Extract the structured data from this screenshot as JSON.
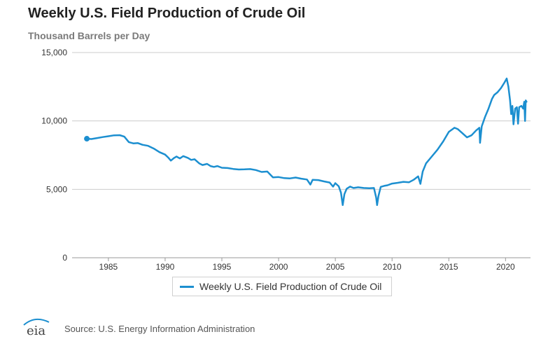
{
  "chart_data": {
    "type": "line",
    "title": "Weekly U.S. Field Production of Crude Oil",
    "subtitle": "Thousand Barrels per Day",
    "xlabel": "",
    "ylabel": "",
    "xlim": [
      1981.8,
      2022.2
    ],
    "ylim": [
      0,
      15000
    ],
    "y_ticks": [
      0,
      5000,
      10000,
      15000
    ],
    "y_tick_labels": [
      "0",
      "5,000",
      "10,000",
      "15,000"
    ],
    "x_ticks": [
      1985,
      1990,
      1995,
      2000,
      2005,
      2010,
      2015,
      2020
    ],
    "x_tick_labels": [
      "1985",
      "1990",
      "1995",
      "2000",
      "2005",
      "2010",
      "2015",
      "2020"
    ],
    "grid": "horizontal",
    "legend_position": "bottom-center",
    "series": [
      {
        "name": "Weekly U.S. Field Production of Crude Oil",
        "color": "#1c8fd0",
        "points": [
          [
            1983.1,
            8700
          ],
          [
            1983.5,
            8680
          ],
          [
            1984.0,
            8750
          ],
          [
            1984.5,
            8820
          ],
          [
            1985.0,
            8880
          ],
          [
            1985.5,
            8950
          ],
          [
            1986.0,
            8960
          ],
          [
            1986.4,
            8850
          ],
          [
            1986.8,
            8450
          ],
          [
            1987.2,
            8360
          ],
          [
            1987.6,
            8380
          ],
          [
            1988.0,
            8260
          ],
          [
            1988.5,
            8180
          ],
          [
            1989.0,
            7980
          ],
          [
            1989.5,
            7720
          ],
          [
            1990.0,
            7540
          ],
          [
            1990.3,
            7300
          ],
          [
            1990.5,
            7100
          ],
          [
            1990.8,
            7300
          ],
          [
            1991.0,
            7400
          ],
          [
            1991.3,
            7260
          ],
          [
            1991.6,
            7430
          ],
          [
            1992.0,
            7300
          ],
          [
            1992.3,
            7150
          ],
          [
            1992.6,
            7200
          ],
          [
            1993.0,
            6900
          ],
          [
            1993.3,
            6780
          ],
          [
            1993.7,
            6860
          ],
          [
            1994.0,
            6700
          ],
          [
            1994.3,
            6640
          ],
          [
            1994.6,
            6700
          ],
          [
            1995.0,
            6580
          ],
          [
            1995.5,
            6560
          ],
          [
            1996.0,
            6490
          ],
          [
            1996.5,
            6450
          ],
          [
            1997.0,
            6460
          ],
          [
            1997.5,
            6480
          ],
          [
            1998.0,
            6410
          ],
          [
            1998.5,
            6270
          ],
          [
            1999.0,
            6300
          ],
          [
            1999.5,
            5870
          ],
          [
            2000.0,
            5900
          ],
          [
            2000.5,
            5820
          ],
          [
            2001.0,
            5800
          ],
          [
            2001.5,
            5860
          ],
          [
            2002.0,
            5780
          ],
          [
            2002.5,
            5720
          ],
          [
            2002.8,
            5350
          ],
          [
            2003.0,
            5700
          ],
          [
            2003.5,
            5680
          ],
          [
            2004.0,
            5580
          ],
          [
            2004.5,
            5500
          ],
          [
            2004.8,
            5200
          ],
          [
            2005.0,
            5450
          ],
          [
            2005.3,
            5220
          ],
          [
            2005.5,
            4750
          ],
          [
            2005.65,
            3850
          ],
          [
            2005.8,
            4650
          ],
          [
            2006.0,
            5050
          ],
          [
            2006.3,
            5200
          ],
          [
            2006.6,
            5100
          ],
          [
            2007.0,
            5150
          ],
          [
            2007.5,
            5100
          ],
          [
            2008.0,
            5080
          ],
          [
            2008.4,
            5100
          ],
          [
            2008.6,
            4400
          ],
          [
            2008.68,
            3850
          ],
          [
            2008.8,
            4500
          ],
          [
            2009.0,
            5180
          ],
          [
            2009.3,
            5250
          ],
          [
            2009.6,
            5300
          ],
          [
            2010.0,
            5420
          ],
          [
            2010.5,
            5480
          ],
          [
            2011.0,
            5550
          ],
          [
            2011.5,
            5520
          ],
          [
            2011.9,
            5700
          ],
          [
            2012.3,
            5950
          ],
          [
            2012.5,
            5400
          ],
          [
            2012.7,
            6300
          ],
          [
            2013.0,
            6900
          ],
          [
            2013.5,
            7400
          ],
          [
            2014.0,
            7900
          ],
          [
            2014.5,
            8500
          ],
          [
            2015.0,
            9200
          ],
          [
            2015.5,
            9500
          ],
          [
            2015.8,
            9400
          ],
          [
            2016.2,
            9100
          ],
          [
            2016.6,
            8800
          ],
          [
            2017.0,
            8950
          ],
          [
            2017.4,
            9300
          ],
          [
            2017.7,
            9500
          ],
          [
            2017.75,
            8400
          ],
          [
            2017.9,
            9600
          ],
          [
            2018.2,
            10300
          ],
          [
            2018.5,
            10900
          ],
          [
            2018.8,
            11600
          ],
          [
            2019.0,
            11900
          ],
          [
            2019.3,
            12100
          ],
          [
            2019.6,
            12400
          ],
          [
            2019.9,
            12800
          ],
          [
            2020.1,
            13100
          ],
          [
            2020.25,
            12500
          ],
          [
            2020.4,
            11500
          ],
          [
            2020.5,
            10500
          ],
          [
            2020.6,
            11100
          ],
          [
            2020.7,
            9750
          ],
          [
            2020.85,
            10900
          ],
          [
            2021.0,
            11000
          ],
          [
            2021.1,
            9800
          ],
          [
            2021.2,
            11000
          ],
          [
            2021.4,
            11100
          ],
          [
            2021.55,
            10900
          ],
          [
            2021.65,
            11400
          ],
          [
            2021.72,
            10000
          ],
          [
            2021.78,
            11500
          ],
          [
            2021.85,
            11400
          ]
        ]
      }
    ]
  },
  "legend": {
    "label": "Weekly U.S. Field Production of Crude Oil"
  },
  "footer": {
    "logo_text": "eia",
    "source": "Source: U.S. Energy Information Administration"
  }
}
